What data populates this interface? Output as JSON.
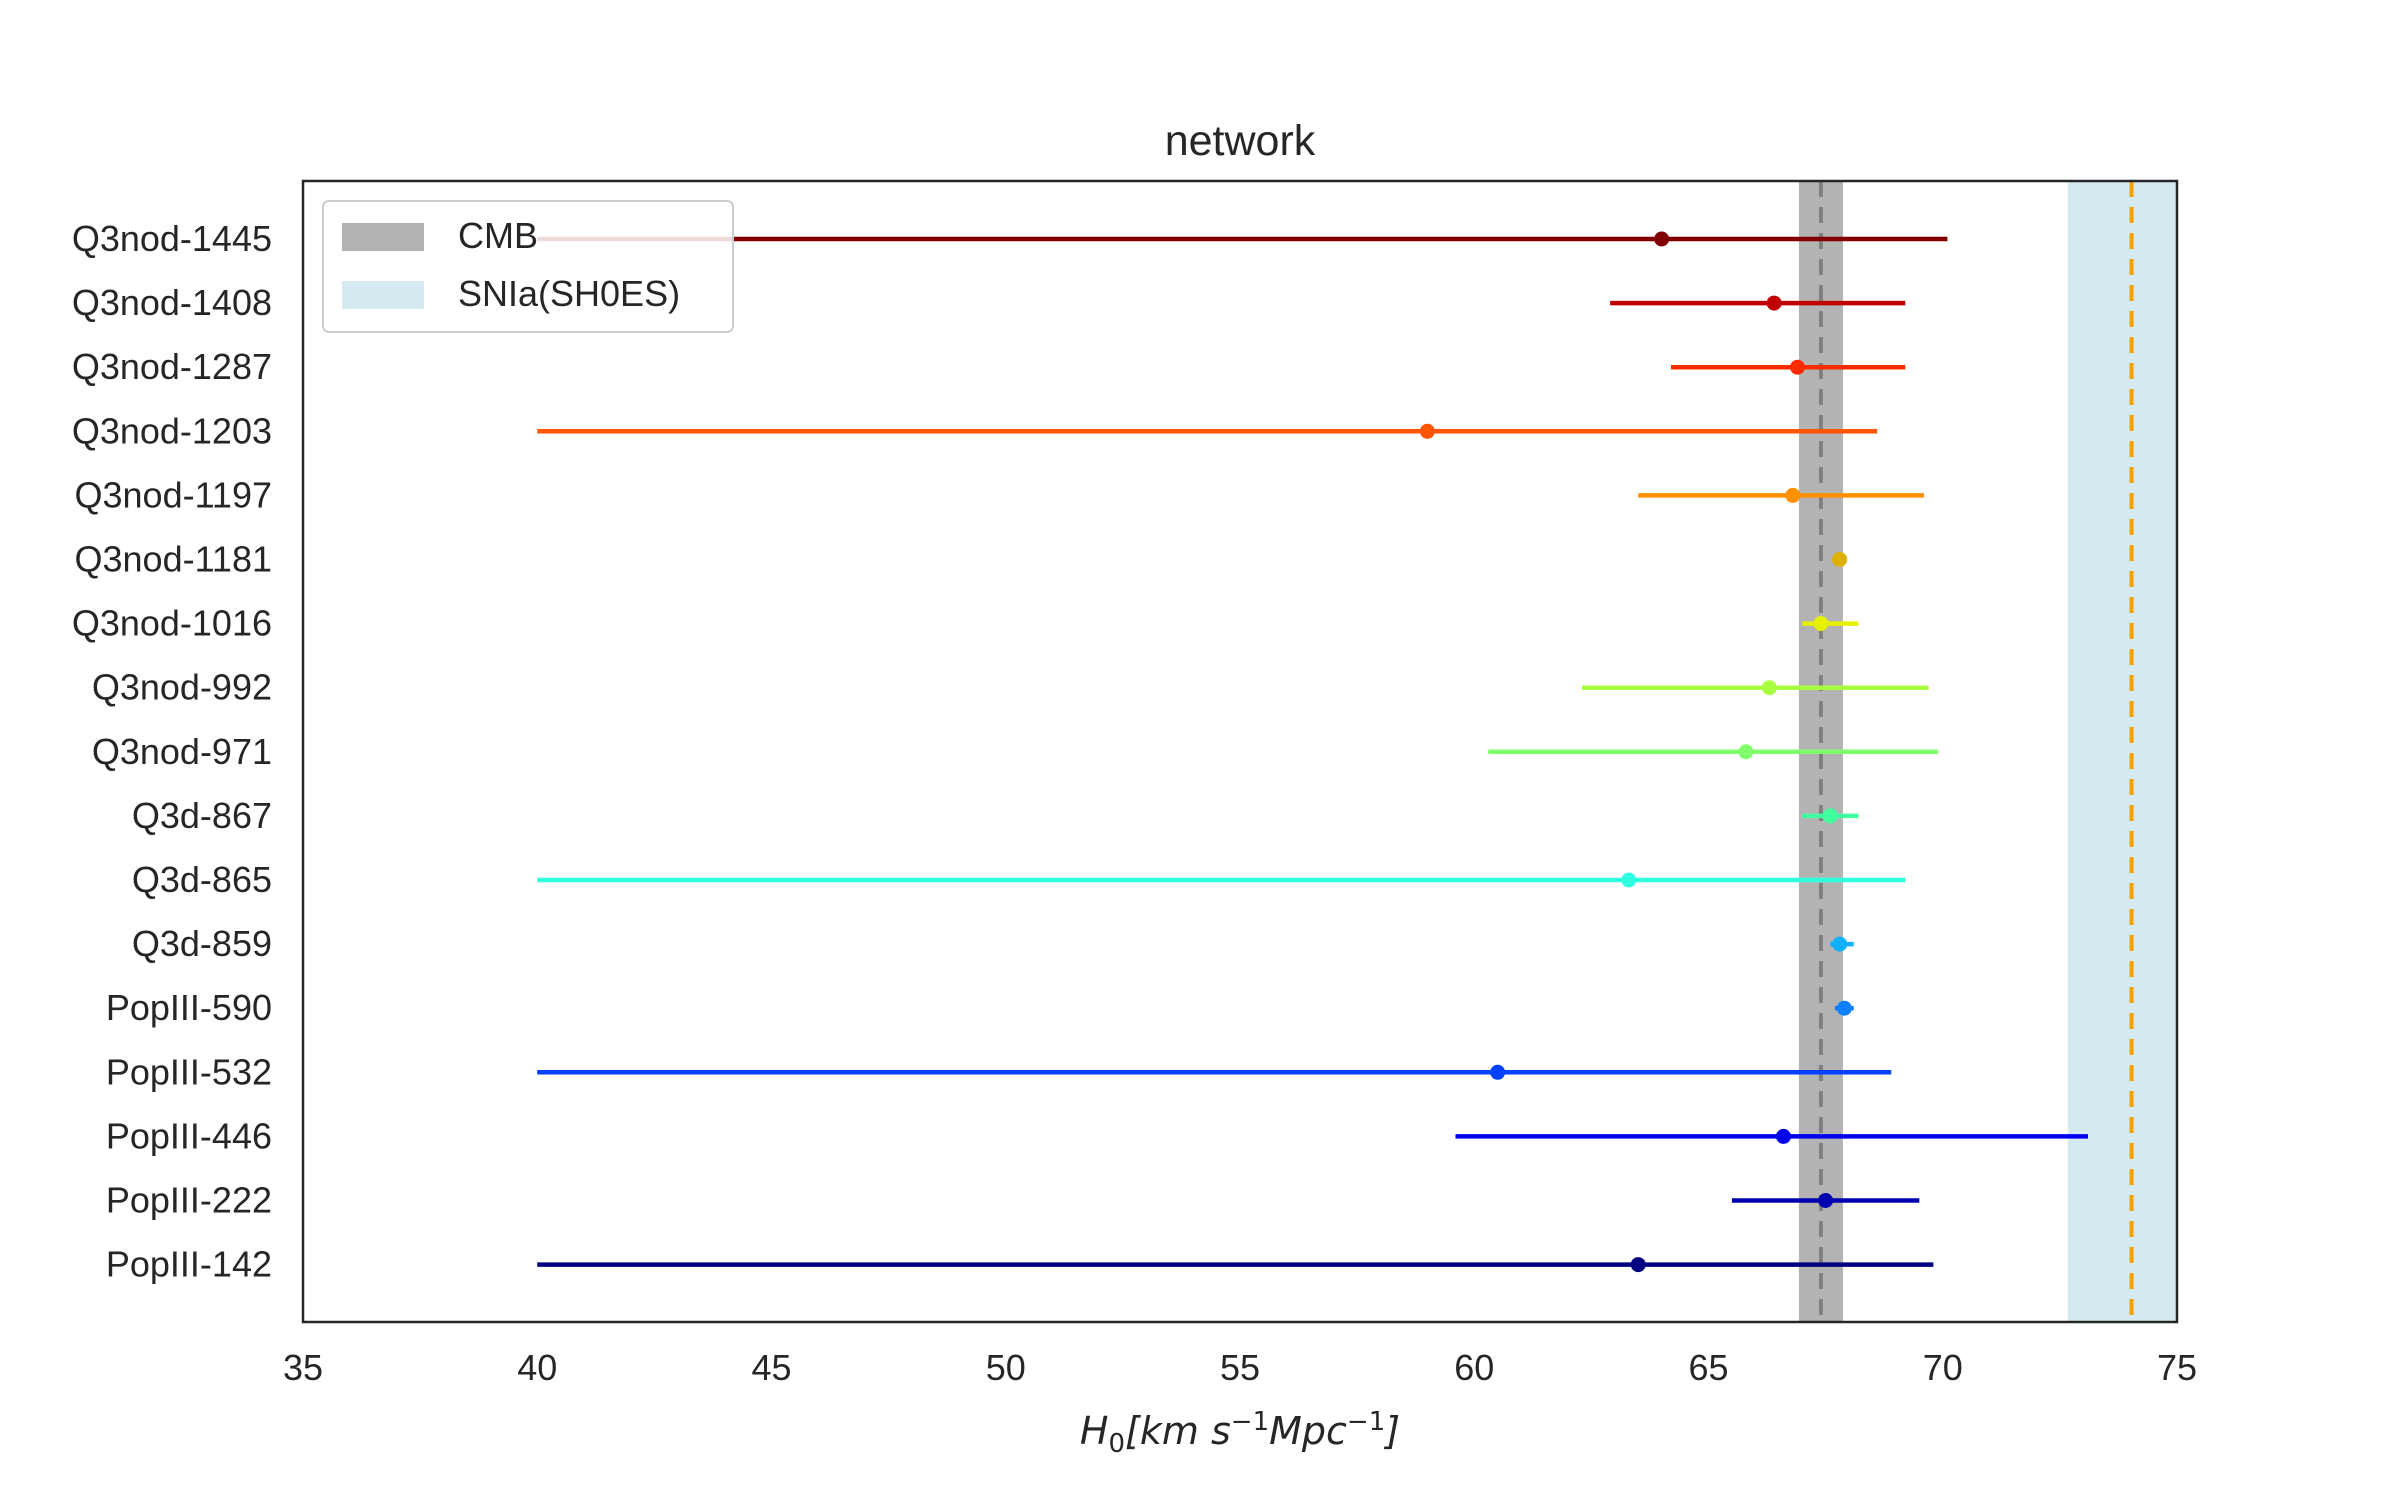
{
  "chart_data": {
    "type": "errorbar",
    "title": "network",
    "xlabel": {
      "base": "H",
      "sub": "0",
      "rest": "[km s",
      "sup1": "−1",
      "mid": "Mpc",
      "sup2": "−1",
      "end": "]"
    },
    "xlim": [
      35,
      75
    ],
    "xticks": [
      "35",
      "40",
      "45",
      "50",
      "55",
      "60",
      "65",
      "70",
      "75"
    ],
    "grid": false,
    "legend_position": "upper-left",
    "bands": [
      {
        "name": "CMB",
        "low": 66.93,
        "high": 67.87,
        "center": 67.4,
        "fill": "#b3b3b3",
        "line_color": "#808080"
      },
      {
        "name": "SNIa(SH0ES)",
        "low": 72.67,
        "high": 75.0,
        "center": 74.03,
        "fill": "#d4eaf0",
        "line_color": "#f5a000"
      }
    ],
    "series": [
      {
        "label": "Q3nod-1445",
        "value": 64.0,
        "low": 40.0,
        "high": 70.1,
        "color": "#800000"
      },
      {
        "label": "Q3nod-1408",
        "value": 66.4,
        "low": 62.9,
        "high": 69.2,
        "color": "#c00000"
      },
      {
        "label": "Q3nod-1287",
        "value": 66.9,
        "low": 64.2,
        "high": 69.2,
        "color": "#ff2a00"
      },
      {
        "label": "Q3nod-1203",
        "value": 59.0,
        "low": 40.0,
        "high": 68.6,
        "color": "#ff5500"
      },
      {
        "label": "Q3nod-1197",
        "value": 66.8,
        "low": 63.5,
        "high": 69.6,
        "color": "#ff9000"
      },
      {
        "label": "Q3nod-1181",
        "value": 67.8,
        "low": 67.7,
        "high": 67.9,
        "color": "#e0b000"
      },
      {
        "label": "Q3nod-1016",
        "value": 67.4,
        "low": 67.0,
        "high": 68.2,
        "color": "#e6f000"
      },
      {
        "label": "Q3nod-992",
        "value": 66.3,
        "low": 62.3,
        "high": 69.7,
        "color": "#a8ff40"
      },
      {
        "label": "Q3nod-971",
        "value": 65.8,
        "low": 60.3,
        "high": 69.9,
        "color": "#80ff6a"
      },
      {
        "label": "Q3d-867",
        "value": 67.6,
        "low": 67.0,
        "high": 68.2,
        "color": "#40ffa0"
      },
      {
        "label": "Q3d-865",
        "value": 63.3,
        "low": 40.0,
        "high": 69.2,
        "color": "#30ffe0"
      },
      {
        "label": "Q3d-859",
        "value": 67.8,
        "low": 67.6,
        "high": 68.1,
        "color": "#10b0ff"
      },
      {
        "label": "PopIII-590",
        "value": 67.9,
        "low": 67.7,
        "high": 68.1,
        "color": "#1080ff"
      },
      {
        "label": "PopIII-532",
        "value": 60.5,
        "low": 40.0,
        "high": 68.9,
        "color": "#0040ff"
      },
      {
        "label": "PopIII-446",
        "value": 66.6,
        "low": 59.6,
        "high": 73.1,
        "color": "#0000f0"
      },
      {
        "label": "PopIII-222",
        "value": 67.5,
        "low": 65.5,
        "high": 69.5,
        "color": "#0000b0"
      },
      {
        "label": "PopIII-142",
        "value": 63.5,
        "low": 40.0,
        "high": 69.8,
        "color": "#000080"
      }
    ]
  }
}
